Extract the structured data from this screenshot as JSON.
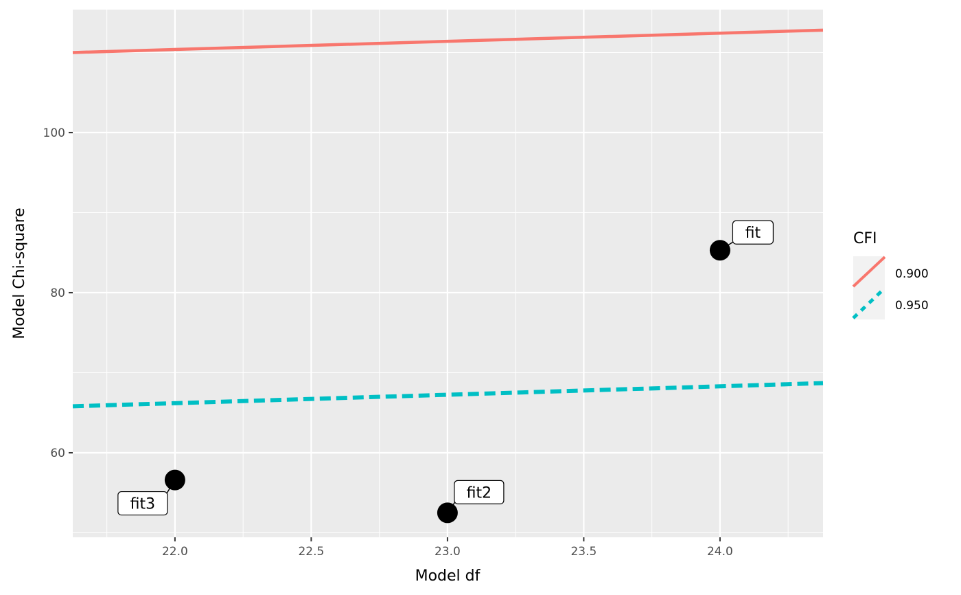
{
  "chart_data": {
    "type": "scatter",
    "title": "",
    "xlabel": "Model df",
    "ylabel": "Model Chi-square",
    "xlim": [
      21.625,
      24.378
    ],
    "ylim": [
      49.44,
      115.36
    ],
    "x_ticks": [
      22.0,
      22.5,
      23.0,
      23.5,
      24.0
    ],
    "x_tick_labels": [
      "22.0",
      "22.5",
      "23.0",
      "23.5",
      "24.0"
    ],
    "y_ticks": [
      60,
      80,
      100
    ],
    "y_tick_labels": [
      "60",
      "80",
      "100"
    ],
    "grid": true,
    "points": [
      {
        "label": "fit",
        "x": 24,
        "y": 85.3
      },
      {
        "label": "fit2",
        "x": 23,
        "y": 52.5
      },
      {
        "label": "fit3",
        "x": 22,
        "y": 56.6
      }
    ],
    "reference_lines": [
      {
        "name": "0.900",
        "color": "#F8766D",
        "style": "solid",
        "x": [
          21.625,
          24.378
        ],
        "y": [
          110.0,
          112.8
        ]
      },
      {
        "name": "0.950",
        "color": "#00BFC4",
        "style": "dashed",
        "x": [
          21.625,
          24.378
        ],
        "y": [
          65.8,
          68.7
        ]
      }
    ],
    "legend": {
      "title": "CFI",
      "position": "right",
      "entries": [
        {
          "label": "0.900",
          "color": "#F8766D",
          "style": "solid"
        },
        {
          "label": "0.950",
          "color": "#00BFC4",
          "style": "dashed"
        }
      ]
    }
  }
}
